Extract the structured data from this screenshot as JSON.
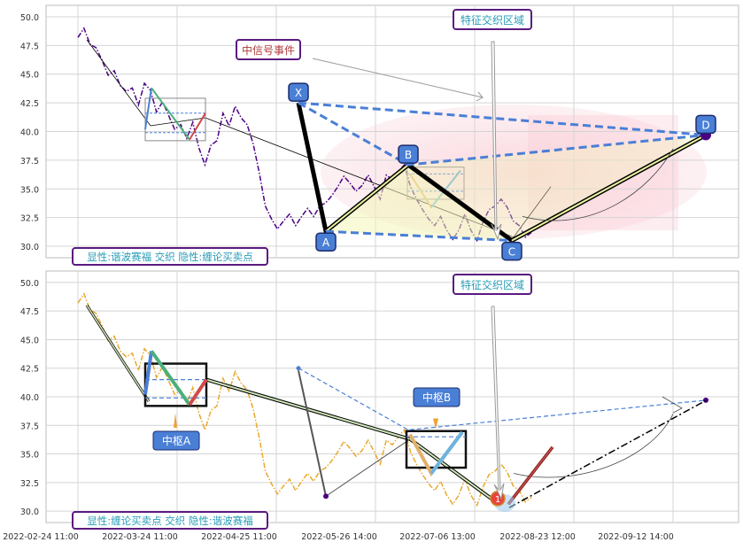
{
  "chart_data": {
    "type": "line",
    "x_ticks": [
      "2022-02-24 11:00",
      "2022-03-24 11:00",
      "2022-04-25 11:00",
      "2022-05-26 14:00",
      "2022-07-06 13:00",
      "2022-08-23 12:00",
      "2022-09-12 14:00"
    ],
    "ylim": [
      29,
      51
    ],
    "y_ticks": [
      "30.0",
      "32.5",
      "35.0",
      "37.5",
      "40.0",
      "42.5",
      "45.0",
      "47.5",
      "50.0"
    ],
    "grid": true,
    "panels": [
      {
        "caption": "显性:谐波赛福 交织 隐性:缠论买卖点",
        "series": [
          {
            "style": "price-dashdot",
            "color": "#4b0082",
            "t": [
              0,
              2,
              4,
              6,
              8,
              10,
              12,
              14,
              16,
              18,
              20,
              22,
              24,
              26,
              28,
              30,
              32,
              34,
              36,
              38,
              40,
              42,
              44,
              46,
              48,
              50,
              52,
              54,
              56,
              58,
              60,
              62,
              64,
              66,
              68,
              70,
              72,
              74,
              76,
              78,
              80,
              82,
              84,
              86,
              88,
              90,
              92,
              94,
              96,
              98,
              100,
              102,
              104,
              106,
              108,
              110,
              112,
              114,
              116,
              118,
              120,
              122,
              124,
              126,
              128,
              130,
              132,
              134,
              136,
              138,
              140,
              142,
              144,
              146,
              148,
              150
            ],
            "v": [
              48.2,
              49.0,
              47.6,
              47.3,
              46.2,
              44.9,
              45.3,
              44.0,
              43.5,
              43.8,
              42.3,
              44.2,
              43.6,
              41.7,
              42.6,
              41.4,
              40.2,
              40.6,
              39.4,
              40.8,
              38.6,
              37.1,
              38.8,
              39.2,
              41.6,
              40.5,
              42.2,
              41.2,
              40.6,
              38.9,
              36.4,
              33.5,
              32.4,
              31.5,
              32.2,
              32.8,
              31.8,
              32.6,
              33.3,
              32.6,
              33.5,
              33.8,
              34.4,
              35.2,
              36.1,
              35.5,
              34.8,
              35.3,
              36.2,
              35.2,
              34.1,
              36.2,
              35.8,
              36.5,
              37.1,
              35.2,
              34.1,
              33.2,
              32.4,
              31.8,
              32.6,
              31.4,
              30.6,
              31.4,
              32.8,
              31.4,
              30.5,
              32.1,
              33.2,
              33.5,
              34.1,
              33.4,
              32.2,
              31.8,
              30.8,
              31.2
            ]
          },
          {
            "style": "harmonic-XABCD",
            "points": [
              [
                "X",
                42.5
              ],
              [
                "A",
                31.5
              ],
              [
                "B",
                37.0
              ],
              [
                "C",
                30.5
              ],
              [
                "D",
                39.7
              ]
            ]
          },
          {
            "style": "chanlun-strokes",
            "points": [
              [
                42.5,
                44.0
              ],
              [
                46.1,
                40.8
              ],
              [
                47.5,
                39.5
              ],
              [
                49.2,
                41.8
              ],
              [
                54.0,
                40.3
              ],
              [
                62.0,
                36.2
              ],
              [
                78.0,
                34.6
              ],
              [
                95.0,
                32.1
              ],
              [
                114.0,
                30.6
              ],
              [
                127.0,
                33.8
              ]
            ]
          }
        ],
        "labels": [
          "X",
          "A",
          "B",
          "C",
          "D"
        ]
      },
      {
        "caption": "显性:缠论买卖点 交织 隐性:谐波赛福",
        "series": [
          {
            "style": "price-dashdot",
            "color": "#e8a82d",
            "t": [
              0,
              2,
              4,
              6,
              8,
              10,
              12,
              14,
              16,
              18,
              20,
              22,
              24,
              26,
              28,
              30,
              32,
              34,
              36,
              38,
              40,
              42,
              44,
              46,
              48,
              50,
              52,
              54,
              56,
              58,
              60,
              62,
              64,
              66,
              68,
              70,
              72,
              74,
              76,
              78,
              80,
              82,
              84,
              86,
              88,
              90,
              92,
              94,
              96,
              98,
              100,
              102,
              104,
              106,
              108,
              110,
              112,
              114,
              116,
              118,
              120,
              122,
              124,
              126,
              128,
              130,
              132,
              134,
              136,
              138,
              140,
              142,
              144,
              146,
              148,
              150
            ],
            "v": [
              48.2,
              49.0,
              47.6,
              47.3,
              46.2,
              44.9,
              45.3,
              44.0,
              43.5,
              43.8,
              42.3,
              44.2,
              43.6,
              41.7,
              42.6,
              41.4,
              40.2,
              40.6,
              39.4,
              40.8,
              38.6,
              37.1,
              38.8,
              39.2,
              41.6,
              40.5,
              42.2,
              41.2,
              40.6,
              38.9,
              36.4,
              33.5,
              32.4,
              31.5,
              32.2,
              32.8,
              31.8,
              32.6,
              33.3,
              32.6,
              33.5,
              33.8,
              34.4,
              35.2,
              36.1,
              35.5,
              34.8,
              35.3,
              36.2,
              35.2,
              34.1,
              36.2,
              35.8,
              36.5,
              37.1,
              35.2,
              34.1,
              33.2,
              32.4,
              31.8,
              32.6,
              31.4,
              30.6,
              31.4,
              32.8,
              31.4,
              30.5,
              32.1,
              33.2,
              33.5,
              34.1,
              33.4,
              32.2,
              31.8,
              30.8,
              31.2
            ]
          }
        ],
        "labels": [
          "中枢A",
          "中枢B"
        ]
      }
    ],
    "annotations": [
      "中信号事件",
      "特征交织区域",
      "特征交织区域"
    ],
    "marker_label": "1"
  }
}
